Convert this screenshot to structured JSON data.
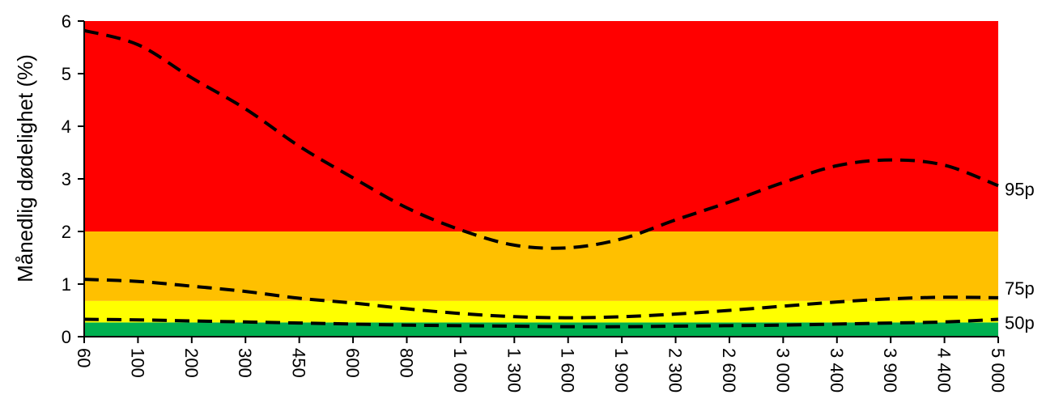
{
  "chart_data": {
    "type": "line",
    "title": "",
    "xlabel": "",
    "ylabel": "Månedlig dødelighet (%)",
    "ylim": [
      0,
      6
    ],
    "yticks": [
      "0",
      "1",
      "2",
      "3",
      "4",
      "5",
      "6"
    ],
    "categories": [
      "60",
      "100",
      "200",
      "300",
      "450",
      "600",
      "800",
      "1 000",
      "1 300",
      "1 600",
      "1 900",
      "2 300",
      "2 600",
      "3 000",
      "3 400",
      "3 900",
      "4 400",
      "5 000"
    ],
    "bands": [
      {
        "from": 0,
        "to": 0.27,
        "color": "#00b050"
      },
      {
        "from": 0.27,
        "to": 0.68,
        "color": "#ffff00"
      },
      {
        "from": 0.68,
        "to": 2.0,
        "color": "#ffc000"
      },
      {
        "from": 2.0,
        "to": 6.0,
        "color": "#ff0000"
      }
    ],
    "series": [
      {
        "name": "95p",
        "values": [
          5.82,
          5.55,
          4.92,
          4.33,
          3.62,
          3.02,
          2.45,
          2.03,
          1.74,
          1.69,
          1.86,
          2.22,
          2.56,
          2.93,
          3.25,
          3.36,
          3.26,
          2.87
        ]
      },
      {
        "name": "75p",
        "values": [
          1.09,
          1.05,
          0.96,
          0.86,
          0.73,
          0.64,
          0.53,
          0.44,
          0.38,
          0.36,
          0.38,
          0.43,
          0.5,
          0.58,
          0.66,
          0.72,
          0.75,
          0.74
        ]
      },
      {
        "name": "50p",
        "values": [
          0.33,
          0.32,
          0.3,
          0.28,
          0.26,
          0.24,
          0.22,
          0.21,
          0.2,
          0.19,
          0.19,
          0.2,
          0.21,
          0.22,
          0.24,
          0.26,
          0.28,
          0.33
        ]
      }
    ],
    "line_style": {
      "color": "#000000",
      "dash": "dashed"
    },
    "grid": false,
    "legend": "none"
  }
}
